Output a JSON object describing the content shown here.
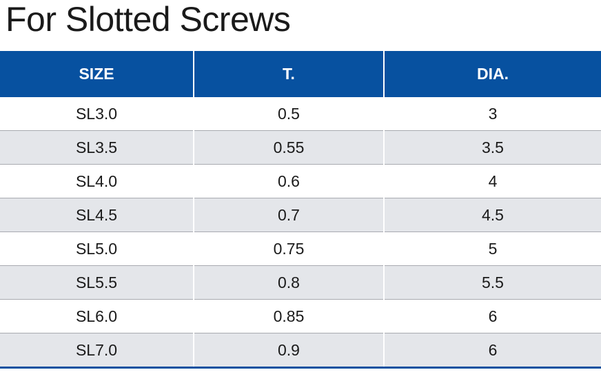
{
  "title": "For Slotted Screws",
  "table": {
    "headers": [
      "SIZE",
      "T.",
      "DIA."
    ],
    "rows": [
      [
        "SL3.0",
        "0.5",
        "3"
      ],
      [
        "SL3.5",
        "0.55",
        "3.5"
      ],
      [
        "SL4.0",
        "0.6",
        "4"
      ],
      [
        "SL4.5",
        "0.7",
        "4.5"
      ],
      [
        "SL5.0",
        "0.75",
        "5"
      ],
      [
        "SL5.5",
        "0.8",
        "5.5"
      ],
      [
        "SL6.0",
        "0.85",
        "6"
      ],
      [
        "SL7.0",
        "0.9",
        "6"
      ]
    ]
  },
  "colors": {
    "header_bg": "#0751a0",
    "header_text": "#ffffff",
    "row_alt_bg": "#e4e6ea",
    "row_text": "#1a1a1a"
  }
}
